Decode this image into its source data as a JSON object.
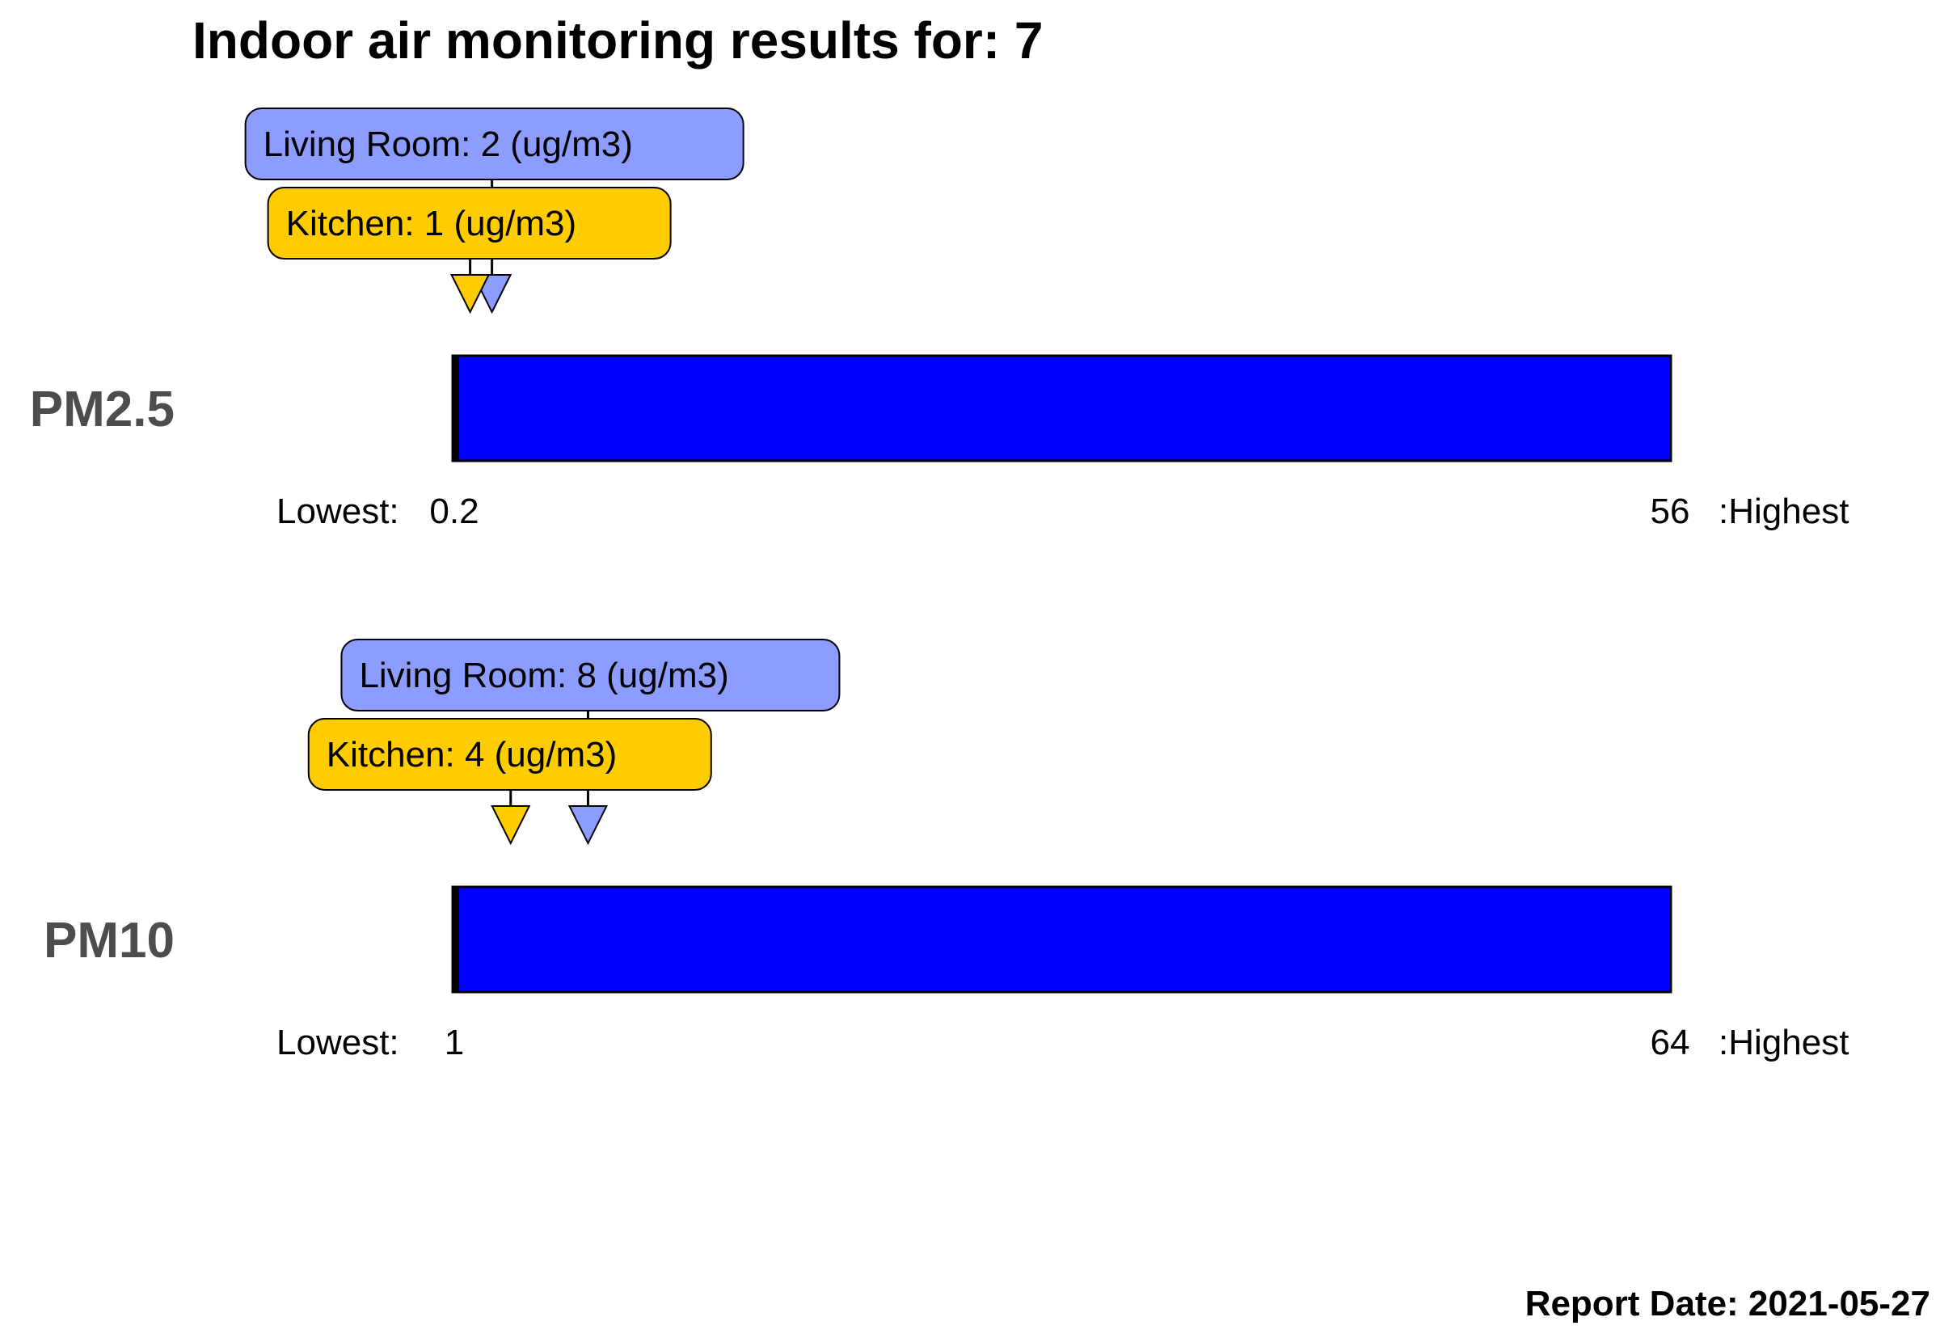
{
  "title": "Indoor air monitoring results for: 7",
  "report_date_label": "Report Date: 2021-05-27",
  "colors": {
    "bar_fill": "#0000ff",
    "living_room": "#8c9cff",
    "kitchen": "#ffcc00",
    "pollutant_label": "#4d4d4d"
  },
  "chart_data": [
    {
      "type": "bar",
      "label": "PM2.5",
      "unit": "ug/m3",
      "lowest_label": "Lowest:",
      "lowest_value": "0.2",
      "highest_value": "56",
      "highest_label": ":Highest",
      "range": [
        0.2,
        56
      ],
      "markers": [
        {
          "name": "Living Room",
          "value": 2,
          "text": "Living Room: 2 (ug/m3)",
          "color": "#8c9cff"
        },
        {
          "name": "Kitchen",
          "value": 1,
          "text": "Kitchen: 1 (ug/m3)",
          "color": "#ffcc00"
        }
      ]
    },
    {
      "type": "bar",
      "label": "PM10",
      "unit": "ug/m3",
      "lowest_label": "Lowest:",
      "lowest_value": "1",
      "highest_value": "64",
      "highest_label": ":Highest",
      "range": [
        1,
        64
      ],
      "markers": [
        {
          "name": "Living Room",
          "value": 8,
          "text": "Living Room: 8 (ug/m3)",
          "color": "#8c9cff"
        },
        {
          "name": "Kitchen",
          "value": 4,
          "text": "Kitchen: 4 (ug/m3)",
          "color": "#ffcc00"
        }
      ]
    }
  ]
}
